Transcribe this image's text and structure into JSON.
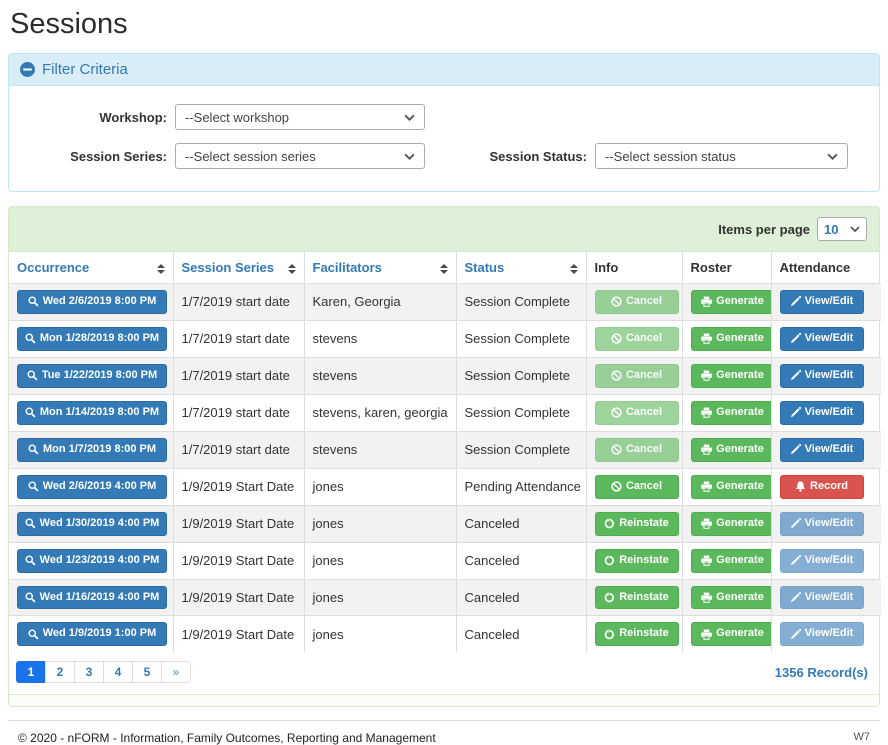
{
  "page": {
    "title": "Sessions"
  },
  "colors": {
    "primary": "#337ab7",
    "success": "#5cb85c",
    "danger": "#d9534f",
    "filter_header_bg": "#d9edf7",
    "table_header_bg": "#dff0d8",
    "pagination_active": "#1a73e8"
  },
  "filter": {
    "title": "Filter Criteria",
    "collapse_icon": "minus-circle-icon",
    "fields": [
      {
        "label": "Workshop:",
        "value": "--Select workshop"
      },
      {
        "label": "Session Series:",
        "value": "--Select session series"
      },
      {
        "label": "Session Status:",
        "value": "--Select session status"
      }
    ]
  },
  "table": {
    "items_per_page_label": "Items per page",
    "items_per_page_value": "10",
    "columns": [
      {
        "label": "Occurrence",
        "sortable": true
      },
      {
        "label": "Session Series",
        "sortable": true
      },
      {
        "label": "Facilitators",
        "sortable": true
      },
      {
        "label": "Status",
        "sortable": true
      },
      {
        "label": "Info",
        "sortable": false
      },
      {
        "label": "Roster",
        "sortable": false
      },
      {
        "label": "Attendance",
        "sortable": false
      }
    ],
    "rows": [
      {
        "occurrence": "Wed 2/6/2019 8:00 PM",
        "session_series": "1/7/2019 start date",
        "facilitators": "Karen, Georgia",
        "status": "Session Complete",
        "info": {
          "label": "Cancel",
          "icon": "ban-icon",
          "variant": "success",
          "disabled": true
        },
        "roster": {
          "label": "Generate",
          "icon": "print-icon",
          "variant": "success",
          "disabled": false
        },
        "attendance": {
          "label": "View/Edit",
          "icon": "pencil-icon",
          "variant": "primary",
          "disabled": false
        }
      },
      {
        "occurrence": "Mon 1/28/2019 8:00 PM",
        "session_series": "1/7/2019 start date",
        "facilitators": "stevens",
        "status": "Session Complete",
        "info": {
          "label": "Cancel",
          "icon": "ban-icon",
          "variant": "success",
          "disabled": true
        },
        "roster": {
          "label": "Generate",
          "icon": "print-icon",
          "variant": "success",
          "disabled": false
        },
        "attendance": {
          "label": "View/Edit",
          "icon": "pencil-icon",
          "variant": "primary",
          "disabled": false
        }
      },
      {
        "occurrence": "Tue 1/22/2019 8:00 PM",
        "session_series": "1/7/2019 start date",
        "facilitators": "stevens",
        "status": "Session Complete",
        "info": {
          "label": "Cancel",
          "icon": "ban-icon",
          "variant": "success",
          "disabled": true
        },
        "roster": {
          "label": "Generate",
          "icon": "print-icon",
          "variant": "success",
          "disabled": false
        },
        "attendance": {
          "label": "View/Edit",
          "icon": "pencil-icon",
          "variant": "primary",
          "disabled": false
        }
      },
      {
        "occurrence": "Mon 1/14/2019 8:00 PM",
        "session_series": "1/7/2019 start date",
        "facilitators": "stevens, karen, georgia",
        "status": "Session Complete",
        "info": {
          "label": "Cancel",
          "icon": "ban-icon",
          "variant": "success",
          "disabled": true
        },
        "roster": {
          "label": "Generate",
          "icon": "print-icon",
          "variant": "success",
          "disabled": false
        },
        "attendance": {
          "label": "View/Edit",
          "icon": "pencil-icon",
          "variant": "primary",
          "disabled": false
        }
      },
      {
        "occurrence": "Mon 1/7/2019 8:00 PM",
        "session_series": "1/7/2019 start date",
        "facilitators": "stevens",
        "status": "Session Complete",
        "info": {
          "label": "Cancel",
          "icon": "ban-icon",
          "variant": "success",
          "disabled": true
        },
        "roster": {
          "label": "Generate",
          "icon": "print-icon",
          "variant": "success",
          "disabled": false
        },
        "attendance": {
          "label": "View/Edit",
          "icon": "pencil-icon",
          "variant": "primary",
          "disabled": false
        }
      },
      {
        "occurrence": "Wed 2/6/2019 4:00 PM",
        "session_series": "1/9/2019 Start Date",
        "facilitators": "jones",
        "status": "Pending Attendance",
        "info": {
          "label": "Cancel",
          "icon": "ban-icon",
          "variant": "success",
          "disabled": false
        },
        "roster": {
          "label": "Generate",
          "icon": "print-icon",
          "variant": "success",
          "disabled": false
        },
        "attendance": {
          "label": "Record",
          "icon": "bell-icon",
          "variant": "danger",
          "disabled": false
        }
      },
      {
        "occurrence": "Wed 1/30/2019 4:00 PM",
        "session_series": "1/9/2019 Start Date",
        "facilitators": "jones",
        "status": "Canceled",
        "info": {
          "label": "Reinstate",
          "icon": "reinstate-icon",
          "variant": "success",
          "disabled": false
        },
        "roster": {
          "label": "Generate",
          "icon": "print-icon",
          "variant": "success",
          "disabled": false
        },
        "attendance": {
          "label": "View/Edit",
          "icon": "pencil-icon",
          "variant": "primary",
          "disabled": true
        }
      },
      {
        "occurrence": "Wed 1/23/2019 4:00 PM",
        "session_series": "1/9/2019 Start Date",
        "facilitators": "jones",
        "status": "Canceled",
        "info": {
          "label": "Reinstate",
          "icon": "reinstate-icon",
          "variant": "success",
          "disabled": false
        },
        "roster": {
          "label": "Generate",
          "icon": "print-icon",
          "variant": "success",
          "disabled": false
        },
        "attendance": {
          "label": "View/Edit",
          "icon": "pencil-icon",
          "variant": "primary",
          "disabled": true
        }
      },
      {
        "occurrence": "Wed 1/16/2019 4:00 PM",
        "session_series": "1/9/2019 Start Date",
        "facilitators": "jones",
        "status": "Canceled",
        "info": {
          "label": "Reinstate",
          "icon": "reinstate-icon",
          "variant": "success",
          "disabled": false
        },
        "roster": {
          "label": "Generate",
          "icon": "print-icon",
          "variant": "success",
          "disabled": false
        },
        "attendance": {
          "label": "View/Edit",
          "icon": "pencil-icon",
          "variant": "primary",
          "disabled": true
        }
      },
      {
        "occurrence": "Wed 1/9/2019 1:00 PM",
        "session_series": "1/9/2019 Start Date",
        "facilitators": "jones",
        "status": "Canceled",
        "info": {
          "label": "Reinstate",
          "icon": "reinstate-icon",
          "variant": "success",
          "disabled": false
        },
        "roster": {
          "label": "Generate",
          "icon": "print-icon",
          "variant": "success",
          "disabled": false
        },
        "attendance": {
          "label": "View/Edit",
          "icon": "pencil-icon",
          "variant": "primary",
          "disabled": true
        }
      }
    ],
    "pagination": [
      "1",
      "2",
      "3",
      "4",
      "5",
      "»"
    ],
    "record_count": "1356 Record(s)"
  },
  "footer": {
    "copyright": "© 2020 - nFORM - Information, Family Outcomes, Reporting and Management",
    "env": "W7"
  }
}
